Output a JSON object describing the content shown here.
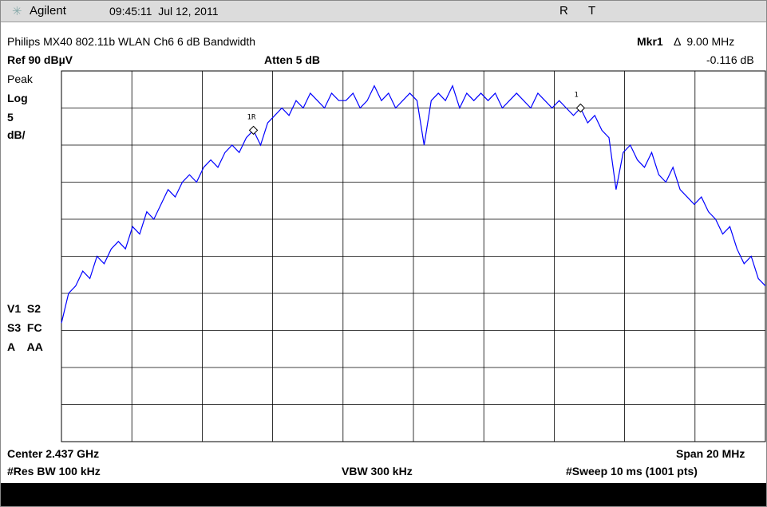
{
  "header": {
    "brand": "Agilent",
    "datetime": "09:45:11  Jul 12, 2011",
    "status_r": "R",
    "status_t": "T"
  },
  "info": {
    "title": "Philips MX40 802.11b WLAN Ch6 6 dB Bandwidth",
    "marker_label": "Mkr1",
    "marker_value": "Δ  9.00 MHz",
    "marker_delta": "-0.116 dB",
    "ref": "Ref 90 dBµV",
    "atten": "Atten 5 dB"
  },
  "left_panel": [
    "Peak",
    "Log",
    "5",
    "dB/"
  ],
  "left_status": [
    "V1  S2",
    "S3  FC",
    "A    AA"
  ],
  "footer": {
    "center": "Center 2.437 GHz",
    "span": "Span 20 MHz",
    "rbw": "#Res BW 100 kHz",
    "vbw": "VBW 300 kHz",
    "sweep": "#Sweep 10 ms (1001 pts)"
  },
  "markers": {
    "m1r": "1R",
    "m1": "1"
  },
  "trace": {
    "color": "#0000ff",
    "ylim": [
      40,
      90
    ],
    "values": [
      56,
      60,
      61,
      63,
      62,
      65,
      64,
      66,
      67,
      66,
      69,
      68,
      71,
      70,
      72,
      74,
      73,
      75,
      76,
      75,
      77,
      78,
      77,
      79,
      80,
      79,
      81,
      82,
      80,
      83,
      84,
      85,
      84,
      86,
      85,
      87,
      86,
      85,
      87,
      86,
      86,
      87,
      85,
      86,
      88,
      86,
      87,
      85,
      86,
      87,
      86,
      80,
      86,
      87,
      86,
      88,
      85,
      87,
      86,
      87,
      86,
      87,
      85,
      86,
      87,
      86,
      85,
      87,
      86,
      85,
      86,
      85,
      84,
      85,
      83,
      84,
      82,
      81,
      74,
      79,
      80,
      78,
      77,
      79,
      76,
      75,
      77,
      74,
      73,
      72,
      73,
      71,
      70,
      68,
      69,
      66,
      64,
      65,
      62,
      61
    ]
  }
}
